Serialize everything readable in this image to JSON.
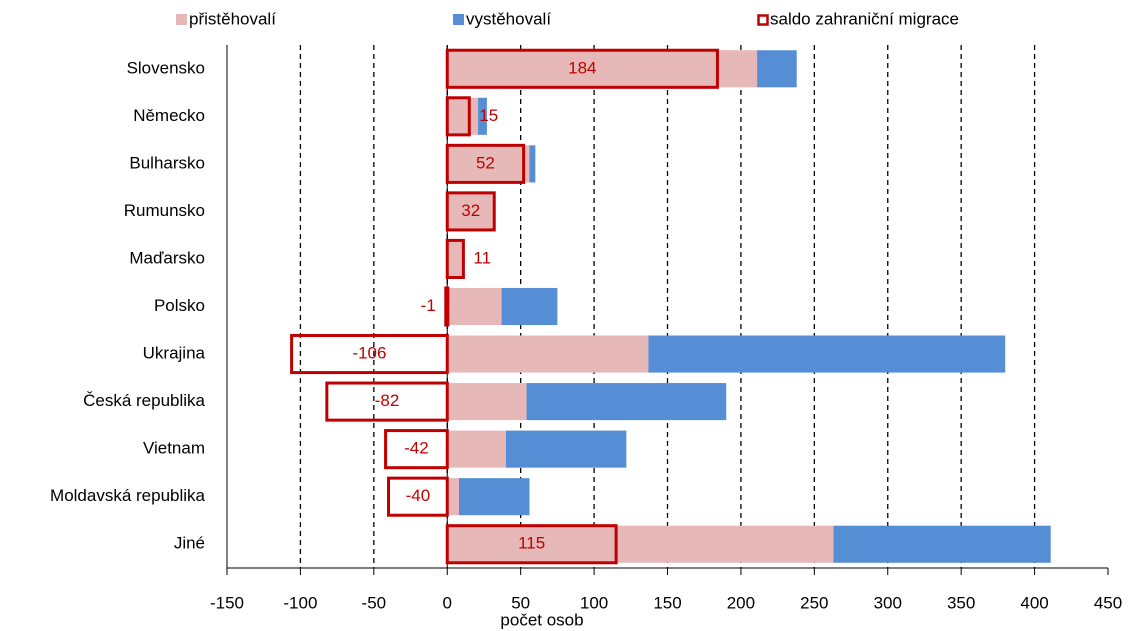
{
  "chart_data": {
    "type": "bar",
    "orientation": "horizontal",
    "xlabel": "počet osob",
    "categories": [
      "Slovensko",
      "Německo",
      "Bulharsko",
      "Rumunsko",
      "Maďarsko",
      "Polsko",
      "Ukrajina",
      "Česká republika",
      "Vietnam",
      "Moldavská republika",
      "Jiné"
    ],
    "series": [
      {
        "name": "přistěhovalí",
        "color": "#e6b9b8",
        "values": [
          211,
          21,
          56,
          32,
          11,
          37,
          137,
          54,
          40,
          8,
          263
        ]
      },
      {
        "name": "vystěhovalí",
        "color": "#558ed5",
        "values": [
          27,
          6,
          4,
          0,
          0,
          38,
          243,
          136,
          82,
          48,
          148
        ]
      },
      {
        "name": "saldo zahraniční migrace",
        "color": "#c00000",
        "values": [
          184,
          15,
          52,
          32,
          11,
          -1,
          -106,
          -82,
          -42,
          -40,
          115
        ]
      }
    ],
    "xlim": [
      -150,
      450
    ],
    "xticks": [
      -150,
      -100,
      -50,
      0,
      50,
      100,
      150,
      200,
      250,
      300,
      350,
      400,
      450
    ],
    "grid": true
  }
}
